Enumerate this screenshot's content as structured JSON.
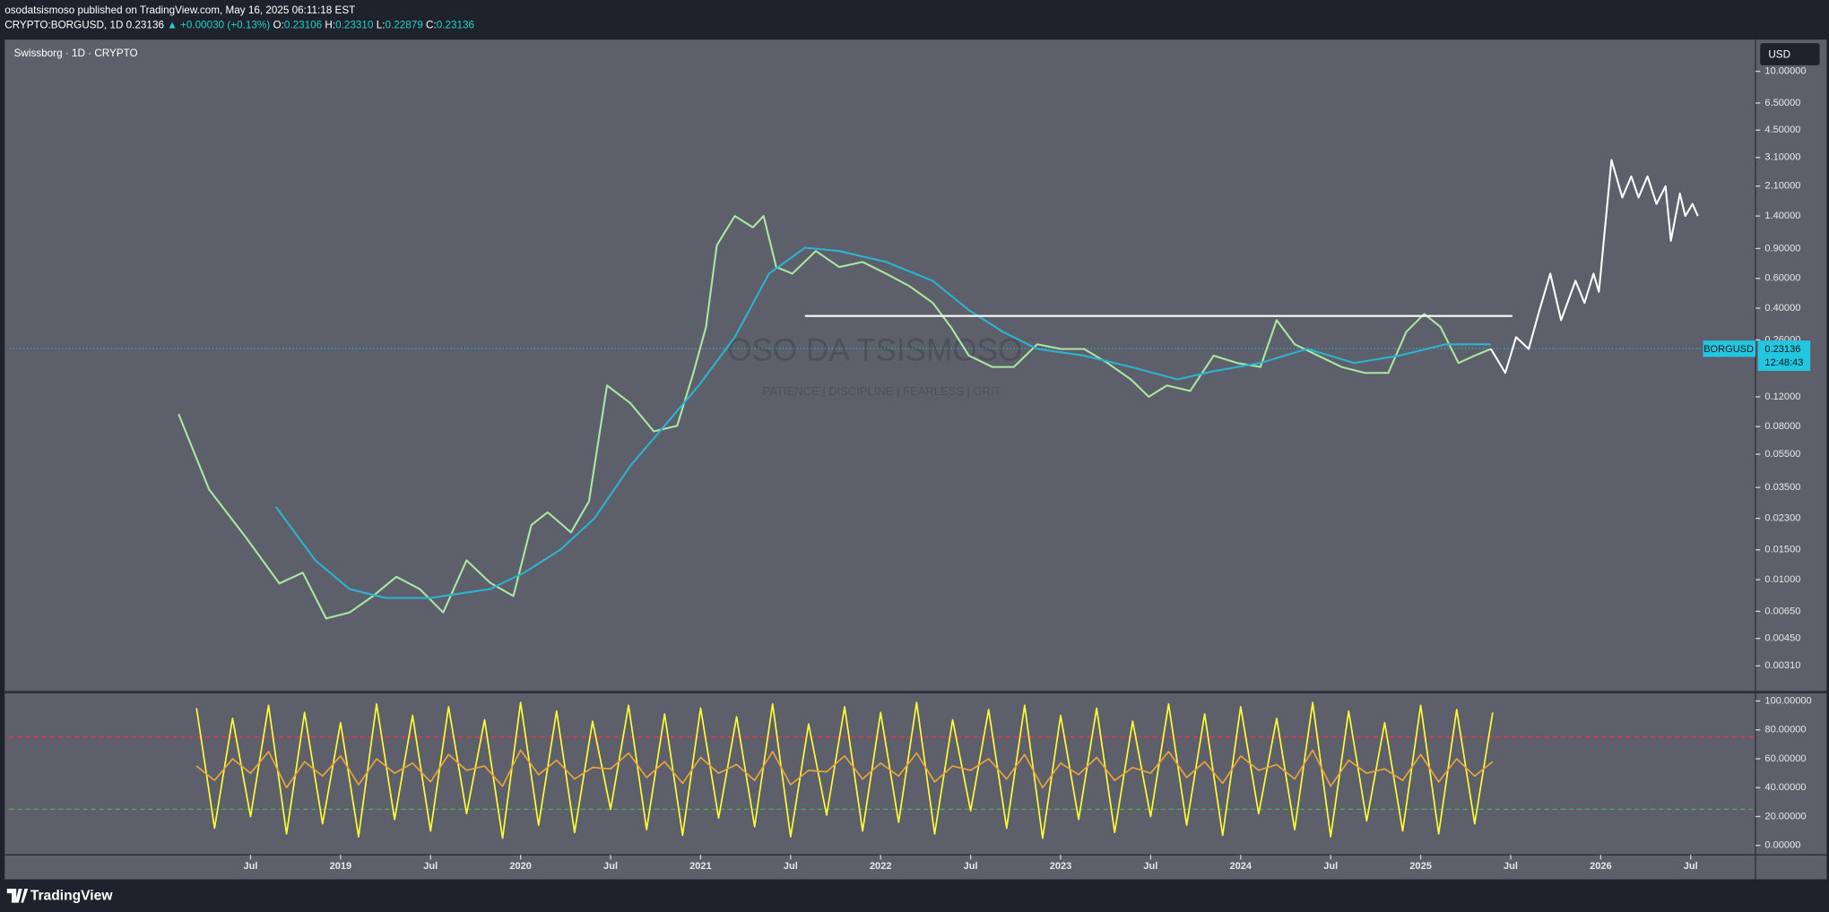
{
  "header": {
    "publisher": "osodatsismoso published on TradingView.com, May 16, 2025 06:11:18 EST",
    "symbol": "CRYPTO:BORGUSD, 1D",
    "last": "0.23136",
    "change": "▲ +0.00030 (+0.13%)",
    "ohlc": [
      {
        "label": "O:",
        "value": "0.23106"
      },
      {
        "label": "H:",
        "value": "0.23310"
      },
      {
        "label": "L:",
        "value": "0.22879"
      },
      {
        "label": "C:",
        "value": "0.23136"
      }
    ],
    "pane_title": "Swissborg · 1D · CRYPTO",
    "currency": "USD",
    "watermark": "OSO DA TSISMOSO",
    "watermark_sub": "PATIENCE   |   DISCIPLINE   |   FEARLESS   |   GRIT",
    "price_tag_symbol": "BORGUSD",
    "countdown": "12:48:43",
    "footer": "TradingView"
  },
  "chart_data": [
    {
      "type": "line",
      "log_scale": true,
      "xlim": [
        2017.16,
        2026.86
      ],
      "ylim": [
        0.00222,
        14.9
      ],
      "yticks": [
        {
          "value": 10,
          "label": "10.00000"
        },
        {
          "value": 6.5,
          "label": "6.50000"
        },
        {
          "value": 4.5,
          "label": "4.50000"
        },
        {
          "value": 3.1,
          "label": "3.10000"
        },
        {
          "value": 2.1,
          "label": "2.10000"
        },
        {
          "value": 1.4,
          "label": "1.40000"
        },
        {
          "value": 0.9,
          "label": "0.90000"
        },
        {
          "value": 0.6,
          "label": "0.60000"
        },
        {
          "value": 0.4,
          "label": "0.40000"
        },
        {
          "value": 0.26,
          "label": "0.26000"
        },
        {
          "value": 0.12,
          "label": "0.12000"
        },
        {
          "value": 0.08,
          "label": "0.08000"
        },
        {
          "value": 0.055,
          "label": "0.05500"
        },
        {
          "value": 0.035,
          "label": "0.03500"
        },
        {
          "value": 0.023,
          "label": "0.02300"
        },
        {
          "value": 0.015,
          "label": "0.01500"
        },
        {
          "value": 0.01,
          "label": "0.01000"
        },
        {
          "value": 0.0065,
          "label": "0.00650"
        },
        {
          "value": 0.0045,
          "label": "0.00450"
        },
        {
          "value": 0.0031,
          "label": "0.00310"
        }
      ],
      "last_price": 0.23136,
      "series": [
        {
          "color": "#a8e8a0",
          "x": [
            2018.1,
            2018.27,
            2018.47,
            2018.66,
            2018.79,
            2018.92,
            2019.05,
            2019.18,
            2019.31,
            2019.44,
            2019.57,
            2019.7,
            2019.83,
            2019.96,
            2020.06,
            2020.15,
            2020.28,
            2020.38,
            2020.48,
            2020.61,
            2020.74,
            2020.87,
            2020.96,
            2021.03,
            2021.09,
            2021.19,
            2021.29,
            2021.35,
            2021.42,
            2021.51,
            2021.64,
            2021.77,
            2021.9,
            2022.03,
            2022.16,
            2022.29,
            2022.39,
            2022.49,
            2022.62,
            2022.74,
            2022.87,
            2023.0,
            2023.13,
            2023.26,
            2023.39,
            2023.49,
            2023.59,
            2023.72,
            2023.85,
            2023.98,
            2024.11,
            2024.2,
            2024.3,
            2024.43,
            2024.56,
            2024.69,
            2024.82,
            2024.92,
            2025.02,
            2025.11,
            2025.21,
            2025.3,
            2025.39
          ],
          "values": [
            0.095,
            0.034,
            0.018,
            0.0095,
            0.011,
            0.0059,
            0.0064,
            0.008,
            0.0104,
            0.0088,
            0.0064,
            0.013,
            0.0096,
            0.008,
            0.021,
            0.025,
            0.019,
            0.029,
            0.14,
            0.11,
            0.075,
            0.081,
            0.166,
            0.31,
            0.94,
            1.4,
            1.2,
            1.4,
            0.7,
            0.64,
            0.87,
            0.7,
            0.75,
            0.64,
            0.54,
            0.43,
            0.31,
            0.21,
            0.18,
            0.18,
            0.245,
            0.23,
            0.23,
            0.19,
            0.152,
            0.12,
            0.14,
            0.13,
            0.21,
            0.19,
            0.18,
            0.34,
            0.245,
            0.21,
            0.18,
            0.166,
            0.166,
            0.29,
            0.37,
            0.31,
            0.19,
            0.21,
            0.23
          ]
        },
        {
          "color": "#2bb3d1",
          "x": [
            2018.64,
            2018.86,
            2019.05,
            2019.25,
            2019.5,
            2019.83,
            2020.02,
            2020.22,
            2020.41,
            2020.61,
            2020.8,
            2020.99,
            2021.19,
            2021.38,
            2021.58,
            2021.77,
            2022.03,
            2022.29,
            2022.49,
            2022.68,
            2022.87,
            2023.13,
            2023.39,
            2023.65,
            2023.85,
            2024.11,
            2024.37,
            2024.63,
            2024.88,
            2025.14,
            2025.39
          ],
          "values": [
            0.027,
            0.013,
            0.0088,
            0.0078,
            0.0078,
            0.0088,
            0.011,
            0.015,
            0.023,
            0.047,
            0.081,
            0.14,
            0.27,
            0.64,
            0.91,
            0.87,
            0.75,
            0.58,
            0.39,
            0.29,
            0.23,
            0.21,
            0.18,
            0.152,
            0.17,
            0.19,
            0.23,
            0.19,
            0.21,
            0.245,
            0.245
          ]
        },
        {
          "color": "#ffffff",
          "x": [
            2025.39,
            2025.47,
            2025.53,
            2025.6,
            2025.66,
            2025.72,
            2025.78,
            2025.86,
            2025.91,
            2025.96,
            2025.99,
            2026.06,
            2026.12,
            2026.17,
            2026.21,
            2026.26,
            2026.31,
            2026.36,
            2026.39,
            2026.44,
            2026.47,
            2026.51,
            2026.54
          ],
          "values": [
            0.23,
            0.166,
            0.27,
            0.23,
            0.39,
            0.64,
            0.34,
            0.58,
            0.43,
            0.64,
            0.5,
            3.0,
            1.8,
            2.4,
            1.8,
            2.4,
            1.65,
            2.1,
            1.0,
            1.9,
            1.4,
            1.65,
            1.4
          ]
        },
        {
          "color": "#ffffff",
          "x": [
            2021.58,
            2025.51
          ],
          "values": [
            0.36,
            0.36
          ]
        }
      ]
    },
    {
      "type": "line",
      "log_scale": false,
      "xlim": [
        2017.16,
        2026.86
      ],
      "ylim": [
        -4.9,
        104.9
      ],
      "yticks": [
        {
          "value": 100,
          "label": "100.00000"
        },
        {
          "value": 80,
          "label": "80.00000"
        },
        {
          "value": 60,
          "label": "60.00000"
        },
        {
          "value": 40,
          "label": "40.00000"
        },
        {
          "value": 20,
          "label": "20.00000"
        },
        {
          "value": 0,
          "label": "0.00000"
        }
      ],
      "xticks": [
        {
          "value": 2018.5,
          "label": "Jul"
        },
        {
          "value": 2019,
          "label": "2019"
        },
        {
          "value": 2019.5,
          "label": "Jul"
        },
        {
          "value": 2020,
          "label": "2020"
        },
        {
          "value": 2020.5,
          "label": "Jul"
        },
        {
          "value": 2021,
          "label": "2021"
        },
        {
          "value": 2021.5,
          "label": "Jul"
        },
        {
          "value": 2022,
          "label": "2022"
        },
        {
          "value": 2022.5,
          "label": "Jul"
        },
        {
          "value": 2023,
          "label": "2023"
        },
        {
          "value": 2023.5,
          "label": "Jul"
        },
        {
          "value": 2024,
          "label": "2024"
        },
        {
          "value": 2024.5,
          "label": "Jul"
        },
        {
          "value": 2025,
          "label": "2025"
        },
        {
          "value": 2025.5,
          "label": "Jul"
        },
        {
          "value": 2026,
          "label": "2026"
        },
        {
          "value": 2026.5,
          "label": "Jul"
        }
      ],
      "levels": [
        {
          "value": 75,
          "color": "#f23645"
        },
        {
          "value": 25,
          "color": "#4caf50"
        }
      ],
      "series": [
        {
          "color": "#ffff33",
          "x": [
            2018.2,
            2018.3,
            2018.4,
            2018.5,
            2018.6,
            2018.7,
            2018.8,
            2018.9,
            2019.0,
            2019.1,
            2019.2,
            2019.3,
            2019.4,
            2019.5,
            2019.6,
            2019.7,
            2019.8,
            2019.9,
            2020.0,
            2020.1,
            2020.2,
            2020.3,
            2020.4,
            2020.5,
            2020.6,
            2020.7,
            2020.8,
            2020.9,
            2021.0,
            2021.1,
            2021.2,
            2021.3,
            2021.4,
            2021.5,
            2021.6,
            2021.7,
            2021.8,
            2021.9,
            2022.0,
            2022.1,
            2022.2,
            2022.3,
            2022.4,
            2022.5,
            2022.6,
            2022.7,
            2022.8,
            2022.9,
            2023.0,
            2023.1,
            2023.2,
            2023.3,
            2023.4,
            2023.5,
            2023.6,
            2023.7,
            2023.8,
            2023.9,
            2024.0,
            2024.1,
            2024.2,
            2024.3,
            2024.4,
            2024.5,
            2024.6,
            2024.7,
            2024.8,
            2024.9,
            2025.0,
            2025.1,
            2025.2,
            2025.3,
            2025.4
          ],
          "values": [
            95,
            12,
            88,
            20,
            97,
            8,
            92,
            15,
            85,
            6,
            98,
            18,
            90,
            10,
            96,
            22,
            87,
            5,
            99,
            14,
            93,
            9,
            86,
            25,
            97,
            11,
            91,
            7,
            95,
            19,
            89,
            13,
            98,
            6,
            84,
            21,
            96,
            10,
            92,
            16,
            99,
            8,
            87,
            24,
            94,
            12,
            97,
            5,
            90,
            18,
            95,
            9,
            86,
            20,
            98,
            14,
            91,
            7,
            96,
            22,
            88,
            11,
            99,
            6,
            93,
            17,
            85,
            10,
            97,
            8,
            94,
            15,
            92
          ]
        },
        {
          "color": "#e8a33d",
          "x": [
            2018.2,
            2018.3,
            2018.4,
            2018.5,
            2018.6,
            2018.7,
            2018.8,
            2018.9,
            2019.0,
            2019.1,
            2019.2,
            2019.3,
            2019.4,
            2019.5,
            2019.6,
            2019.7,
            2019.8,
            2019.9,
            2020.0,
            2020.1,
            2020.2,
            2020.3,
            2020.4,
            2020.5,
            2020.6,
            2020.7,
            2020.8,
            2020.9,
            2021.0,
            2021.1,
            2021.2,
            2021.3,
            2021.4,
            2021.5,
            2021.6,
            2021.7,
            2021.8,
            2021.9,
            2022.0,
            2022.1,
            2022.2,
            2022.3,
            2022.4,
            2022.5,
            2022.6,
            2022.7,
            2022.8,
            2022.9,
            2023.0,
            2023.1,
            2023.2,
            2023.3,
            2023.4,
            2023.5,
            2023.6,
            2023.7,
            2023.8,
            2023.9,
            2024.0,
            2024.1,
            2024.2,
            2024.3,
            2024.4,
            2024.5,
            2024.6,
            2024.7,
            2024.8,
            2024.9,
            2025.0,
            2025.1,
            2025.2,
            2025.3,
            2025.4
          ],
          "values": [
            55,
            45,
            60,
            50,
            65,
            40,
            58,
            48,
            62,
            42,
            60,
            50,
            57,
            44,
            63,
            52,
            55,
            41,
            66,
            49,
            59,
            46,
            54,
            53,
            64,
            47,
            58,
            43,
            61,
            50,
            56,
            45,
            65,
            42,
            52,
            51,
            62,
            46,
            57,
            48,
            64,
            44,
            55,
            52,
            60,
            46,
            63,
            40,
            57,
            49,
            61,
            45,
            54,
            50,
            65,
            47,
            58,
            43,
            62,
            52,
            56,
            46,
            66,
            41,
            59,
            50,
            53,
            45,
            63,
            44,
            60,
            48,
            58
          ]
        }
      ]
    }
  ]
}
